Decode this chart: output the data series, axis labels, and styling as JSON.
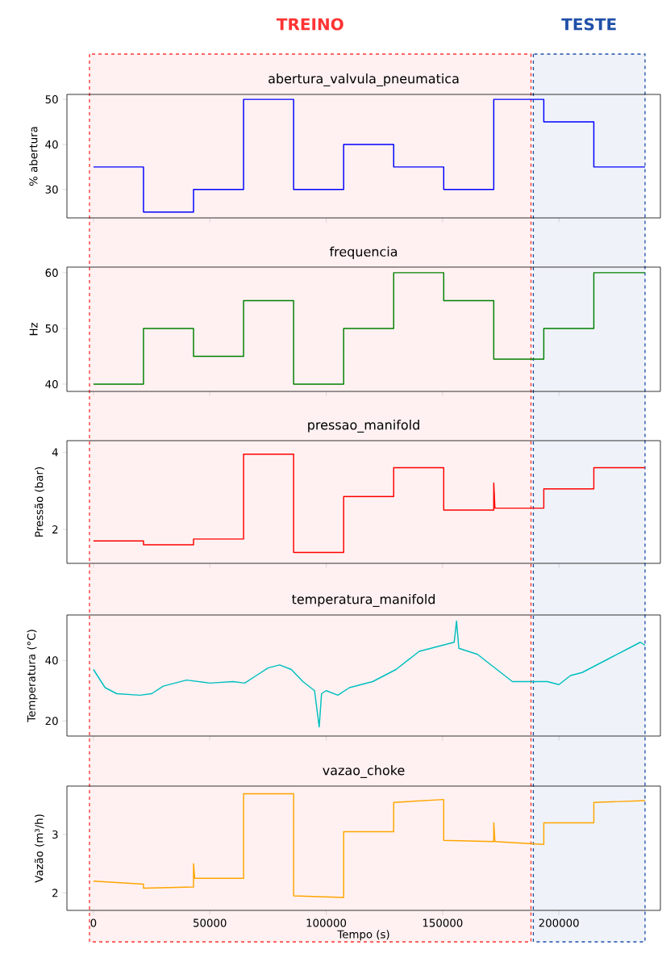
{
  "chart_data": [
    {
      "type": "step",
      "title": "abertura_valvula_pneumatica",
      "ylabel": "% abertura",
      "x": [
        0,
        21500,
        43000,
        64500,
        86000,
        107500,
        129000,
        150500,
        172000,
        193500,
        215000,
        237000
      ],
      "series": [
        {
          "color": "#0000ff",
          "values": [
            35,
            25,
            30,
            50,
            30,
            40,
            35,
            30,
            50,
            45,
            35,
            35
          ]
        }
      ],
      "xlim": [
        -11400,
        243600
      ],
      "xticks": [
        0,
        50000,
        100000,
        150000,
        200000
      ],
      "ylim": [
        23.7,
        51.1
      ],
      "yticks": [
        30,
        40,
        50
      ],
      "tick_labels": "y",
      "bands": [
        {
          "axis": "x",
          "from": -1700,
          "to": 188000,
          "label": "TREINO",
          "color": "#ff3333"
        },
        {
          "axis": "x",
          "from": 189000,
          "to": 237000,
          "label": "TESTE",
          "color": "#1f4fa8"
        }
      ]
    },
    {
      "type": "step",
      "title": "frequencia",
      "ylabel": "Hz",
      "x": [
        0,
        21500,
        43000,
        64500,
        86000,
        107500,
        129000,
        150500,
        172000,
        193500,
        215000,
        237000
      ],
      "series": [
        {
          "color": "#008000",
          "values": [
            40,
            50,
            45,
            55,
            40,
            50,
            60,
            55,
            44.5,
            50,
            60,
            60
          ]
        }
      ],
      "xlim": [
        -11400,
        243600
      ],
      "xticks": [
        0,
        50000,
        100000,
        150000,
        200000
      ],
      "ylim": [
        38.7,
        61
      ],
      "yticks": [
        40,
        50,
        60
      ],
      "tick_labels": "y"
    },
    {
      "type": "line",
      "title": "pressao_manifold",
      "ylabel": "Pressão (bar)",
      "x": [
        0,
        21500,
        21500,
        43000,
        43000,
        64500,
        64500,
        86000,
        86000,
        107500,
        107500,
        129000,
        129000,
        150500,
        150500,
        172000,
        172000,
        172500,
        193500,
        193500,
        215000,
        215000,
        237000
      ],
      "series": [
        {
          "color": "#ff0000",
          "values": [
            1.7,
            1.7,
            1.6,
            1.6,
            1.75,
            1.75,
            3.95,
            3.95,
            1.4,
            1.4,
            2.85,
            2.85,
            3.6,
            3.6,
            2.5,
            2.5,
            3.2,
            2.55,
            2.55,
            3.05,
            3.05,
            3.6,
            3.6
          ]
        }
      ],
      "xlim": [
        -11400,
        243600
      ],
      "xticks": [
        0,
        50000,
        100000,
        150000,
        200000
      ],
      "ylim": [
        1.12,
        4.3
      ],
      "yticks": [
        2,
        4
      ],
      "tick_labels": "y"
    },
    {
      "type": "line",
      "title": "temperatura_manifold",
      "ylabel": "Temperatura (°C)",
      "x": [
        0,
        5000,
        10000,
        20000,
        25000,
        30000,
        40000,
        50000,
        60000,
        65000,
        70000,
        75000,
        80000,
        85000,
        90000,
        95000,
        97000,
        98000,
        100000,
        105000,
        110000,
        120000,
        130000,
        140000,
        150000,
        155000,
        156000,
        157000,
        165000,
        170000,
        180000,
        190000,
        195000,
        200000,
        205000,
        210000,
        215000,
        220000,
        230000,
        235000,
        237000
      ],
      "series": [
        {
          "color": "#00bfbf",
          "values": [
            37,
            31,
            29,
            28.5,
            29,
            31.5,
            33.5,
            32.5,
            33,
            32.5,
            35,
            37.5,
            38.5,
            37,
            33,
            30,
            18,
            29,
            30,
            28.5,
            31,
            33,
            37,
            43,
            45,
            46,
            53,
            44,
            42,
            39,
            33,
            33,
            33,
            32,
            35,
            36,
            38,
            40,
            44,
            46,
            45
          ]
        }
      ],
      "xlim": [
        -11400,
        243600
      ],
      "xticks": [
        0,
        50000,
        100000,
        150000,
        200000
      ],
      "ylim": [
        15,
        55
      ],
      "yticks": [
        20,
        40
      ],
      "tick_labels": "y"
    },
    {
      "type": "line",
      "title": "vazao_choke",
      "ylabel": "Vazão (m³/h)",
      "xlabel": "Tempo (s)",
      "x": [
        0,
        21500,
        21500,
        43000,
        43000,
        43500,
        64500,
        64500,
        86000,
        86000,
        107500,
        107500,
        129000,
        129000,
        150500,
        150500,
        172000,
        172000,
        172500,
        193500,
        193500,
        215000,
        215000,
        237000
      ],
      "series": [
        {
          "color": "#ffa500",
          "values": [
            2.2,
            2.15,
            2.08,
            2.1,
            2.5,
            2.25,
            2.25,
            3.7,
            3.7,
            1.95,
            1.92,
            3.05,
            3.05,
            3.55,
            3.6,
            2.9,
            2.88,
            3.2,
            2.88,
            2.83,
            3.2,
            3.2,
            3.55,
            3.58
          ]
        }
      ],
      "xlim": [
        -11400,
        243600
      ],
      "xticks": [
        0,
        50000,
        100000,
        150000,
        200000
      ],
      "ylim": [
        1.7,
        3.83
      ],
      "yticks": [
        2,
        3
      ]
    }
  ]
}
